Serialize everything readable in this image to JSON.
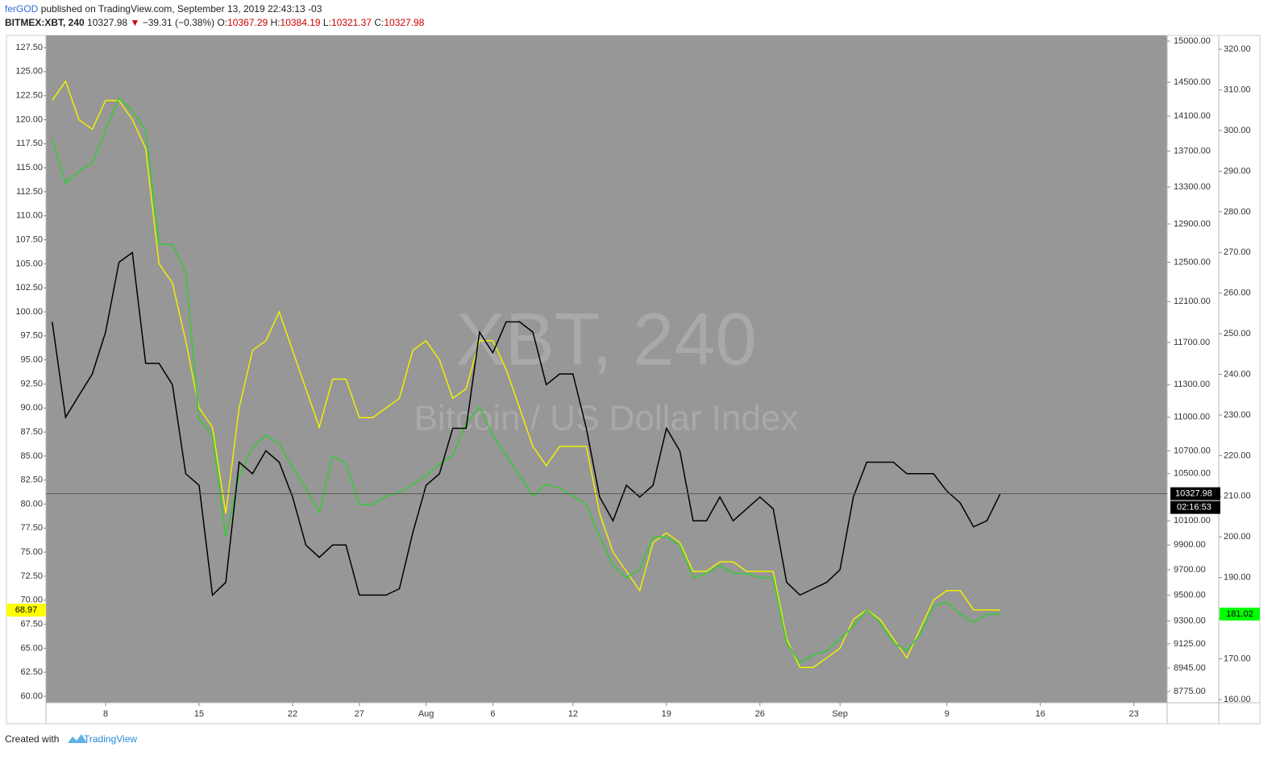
{
  "header": {
    "author": "ferGOD",
    "published": "published on TradingView.com, September 13, 2019 22:43:13 -03",
    "symbol": "BITMEX:XBT, 240",
    "price": "10327.98",
    "change": "−39.31 (−0.38%)",
    "ohlc": [
      {
        "label": "O:",
        "value": "10367.29"
      },
      {
        "label": "H:",
        "value": "10384.19"
      },
      {
        "label": "L:",
        "value": "10321.37"
      },
      {
        "label": "C:",
        "value": "10327.98"
      }
    ]
  },
  "watermark": {
    "title": "XBT, 240",
    "subtitle": "Bitcoin / US Dollar Index"
  },
  "footer": {
    "text": "Created with",
    "brand": "TradingView"
  },
  "chart_data": {
    "type": "line",
    "x": [
      4,
      5,
      6,
      7,
      8,
      9,
      10,
      11,
      12,
      13,
      14,
      15,
      16,
      17,
      18,
      19,
      20,
      21,
      22,
      23,
      24,
      25,
      26,
      27,
      28,
      29,
      30,
      31,
      32,
      33,
      34,
      35,
      36,
      37,
      38,
      39,
      40,
      41,
      42,
      43,
      44,
      45,
      46,
      47,
      48,
      49,
      50,
      51,
      52,
      53,
      54,
      55,
      56,
      57,
      58,
      59,
      60,
      61,
      62,
      63,
      64,
      65,
      66,
      67,
      68,
      69,
      70,
      71,
      72,
      73,
      74,
      75
    ],
    "xlim": [
      3.53,
      87.5
    ],
    "xticks": [
      {
        "value": 8,
        "label": "8"
      },
      {
        "value": 15,
        "label": "15"
      },
      {
        "value": 22,
        "label": "22"
      },
      {
        "value": 27,
        "label": "27"
      },
      {
        "value": 32,
        "label": "Aug"
      },
      {
        "value": 37,
        "label": "6"
      },
      {
        "value": 43,
        "label": "12"
      },
      {
        "value": 50,
        "label": "19"
      },
      {
        "value": 57,
        "label": "26"
      },
      {
        "value": 63,
        "label": "Sep"
      },
      {
        "value": 71,
        "label": "9"
      },
      {
        "value": 78,
        "label": "16"
      },
      {
        "value": 85,
        "label": "23"
      }
    ],
    "ylim": [
      59.33,
      128.76
    ],
    "yticks": [
      {
        "value": 60,
        "label": "60.00"
      },
      {
        "value": 62.5,
        "label": "62.50"
      },
      {
        "value": 65,
        "label": "65.00"
      },
      {
        "value": 67.5,
        "label": "67.50"
      },
      {
        "value": 70,
        "label": "70.00"
      },
      {
        "value": 72.5,
        "label": "72.50"
      },
      {
        "value": 75,
        "label": "75.00"
      },
      {
        "value": 77.5,
        "label": "77.50"
      },
      {
        "value": 80,
        "label": "80.00"
      },
      {
        "value": 82.5,
        "label": "82.50"
      },
      {
        "value": 85,
        "label": "85.00"
      },
      {
        "value": 87.5,
        "label": "87.50"
      },
      {
        "value": 90,
        "label": "90.00"
      },
      {
        "value": 92.5,
        "label": "92.50"
      },
      {
        "value": 95,
        "label": "95.00"
      },
      {
        "value": 97.5,
        "label": "97.50"
      },
      {
        "value": 100,
        "label": "100.00"
      },
      {
        "value": 102.5,
        "label": "102.50"
      },
      {
        "value": 105,
        "label": "105.00"
      },
      {
        "value": 107.5,
        "label": "107.50"
      },
      {
        "value": 110,
        "label": "110.00"
      },
      {
        "value": 112.5,
        "label": "112.50"
      },
      {
        "value": 115,
        "label": "115.00"
      },
      {
        "value": 117.5,
        "label": "117.50"
      },
      {
        "value": 120,
        "label": "120.00"
      },
      {
        "value": 122.5,
        "label": "122.50"
      },
      {
        "value": 125,
        "label": "125.00"
      },
      {
        "value": 127.5,
        "label": "127.50"
      }
    ],
    "y2lim": [
      8693,
      15070
    ],
    "y2_log": true,
    "y2ticks": [
      {
        "value": 8775,
        "label": "8775.00"
      },
      {
        "value": 8945,
        "label": "8945.00"
      },
      {
        "value": 9125,
        "label": "9125.00"
      },
      {
        "value": 9300,
        "label": "9300.00"
      },
      {
        "value": 9500,
        "label": "9500.00"
      },
      {
        "value": 9700,
        "label": "9700.00"
      },
      {
        "value": 9900,
        "label": "9900.00"
      },
      {
        "value": 10100,
        "label": "10100.00"
      },
      {
        "value": 10500,
        "label": "10500.00"
      },
      {
        "value": 10700,
        "label": "10700.00"
      },
      {
        "value": 11000,
        "label": "11000.00"
      },
      {
        "value": 11300,
        "label": "11300.00"
      },
      {
        "value": 11700,
        "label": "11700.00"
      },
      {
        "value": 12100,
        "label": "12100.00"
      },
      {
        "value": 12500,
        "label": "12500.00"
      },
      {
        "value": 12900,
        "label": "12900.00"
      },
      {
        "value": 13300,
        "label": "13300.00"
      },
      {
        "value": 13700,
        "label": "13700.00"
      },
      {
        "value": 14100,
        "label": "14100.00"
      },
      {
        "value": 14500,
        "label": "14500.00"
      },
      {
        "value": 15000,
        "label": "15000.00"
      }
    ],
    "y3lim": [
      159.2,
      323.4
    ],
    "y3ticks": [
      {
        "value": 160,
        "label": "160.00"
      },
      {
        "value": 170,
        "label": "170.00"
      },
      {
        "value": 180,
        "label": "180.00"
      },
      {
        "value": 190,
        "label": "190.00"
      },
      {
        "value": 200,
        "label": "200.00"
      },
      {
        "value": 210,
        "label": "210.00"
      },
      {
        "value": 220,
        "label": "220.00"
      },
      {
        "value": 230,
        "label": "230.00"
      },
      {
        "value": 240,
        "label": "240.00"
      },
      {
        "value": 250,
        "label": "250.00"
      },
      {
        "value": 260,
        "label": "260.00"
      },
      {
        "value": 270,
        "label": "270.00"
      },
      {
        "value": 280,
        "label": "280.00"
      },
      {
        "value": 290,
        "label": "290.00"
      },
      {
        "value": 300,
        "label": "300.00"
      },
      {
        "value": 310,
        "label": "310.00"
      },
      {
        "value": 320,
        "label": "320.00"
      }
    ],
    "countdown": "02:16:53",
    "series": [
      {
        "color": "#f0f000",
        "axis": "y",
        "label_color": "#ffff00",
        "values": [
          122,
          124,
          120,
          119,
          122,
          122,
          120,
          117,
          105,
          103,
          97,
          90,
          88,
          79,
          90,
          96,
          97,
          100,
          96,
          92,
          88,
          93,
          93,
          89,
          89,
          90,
          91,
          96,
          97,
          95,
          91,
          92,
          97,
          97,
          94,
          90,
          86,
          84,
          86,
          86,
          86,
          79,
          75,
          73,
          71,
          76,
          77,
          76,
          73,
          73,
          74,
          74,
          73,
          73,
          73,
          66,
          63,
          63,
          64,
          65,
          68,
          69,
          68,
          66,
          64,
          67,
          70,
          71,
          71,
          69,
          69,
          68.97
        ]
      },
      {
        "color": "#33cc33",
        "axis": "y3",
        "label_color": "#00ff00",
        "values": [
          298,
          287,
          290,
          292,
          300,
          308,
          305,
          300,
          272,
          272,
          265,
          229,
          225,
          200,
          215,
          222,
          225,
          223,
          217,
          212,
          206,
          220,
          218,
          208,
          208,
          210,
          211,
          213,
          215,
          218,
          220,
          228,
          232,
          225,
          220,
          215,
          210,
          213,
          212,
          210,
          208,
          200,
          193,
          190,
          192,
          200,
          200,
          198,
          190,
          191,
          193,
          191,
          191,
          190,
          190,
          174,
          169,
          171,
          172,
          175,
          178,
          182,
          179,
          174,
          172,
          176,
          183,
          184,
          181,
          179,
          181,
          181.02
        ]
      },
      {
        "color": "#000000",
        "axis": "y2",
        "label_color": "#000000",
        "values": [
          11900,
          11000,
          11200,
          11400,
          11800,
          12500,
          12600,
          11500,
          11500,
          11300,
          10500,
          10400,
          9500,
          9600,
          10600,
          10500,
          10700,
          10600,
          10300,
          9900,
          9800,
          9900,
          9900,
          9500,
          9500,
          9500,
          9550,
          10000,
          10400,
          10500,
          10900,
          10900,
          11800,
          11600,
          11900,
          11900,
          11800,
          11300,
          11400,
          11400,
          10900,
          10300,
          10100,
          10400,
          10300,
          10400,
          10900,
          10700,
          10100,
          10100,
          10300,
          10100,
          10200,
          10300,
          10200,
          9600,
          9500,
          9550,
          9600,
          9700,
          10300,
          10600,
          10600,
          10600,
          10500,
          10500,
          10500,
          10350,
          10250,
          10050,
          10100,
          10327.98
        ]
      }
    ]
  }
}
